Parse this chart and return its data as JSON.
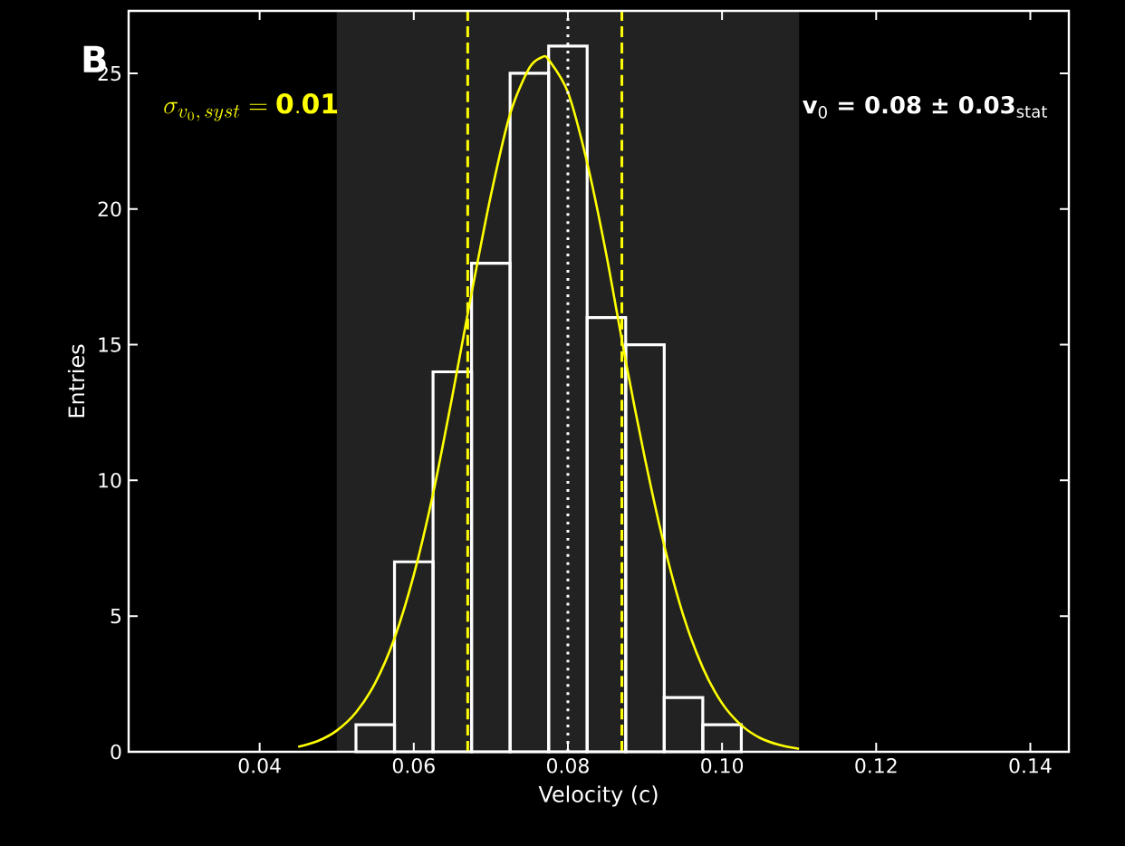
{
  "chart_data": {
    "type": "histogram",
    "xlabel": "Velocity (c)",
    "ylabel": "Entries",
    "bins": [
      0.0525,
      0.0575,
      0.0625,
      0.0675,
      0.0725,
      0.0775,
      0.0825,
      0.0875,
      0.0925,
      0.0975,
      0.1025
    ],
    "series": [
      {
        "color": "#ffffff",
        "values": [
          1,
          7,
          14,
          18,
          25,
          26,
          16,
          15,
          2,
          1
        ]
      },
      {
        "type": "line",
        "color": "#ffff00",
        "x": [
          0.045,
          0.0475,
          0.05,
          0.0525,
          0.055,
          0.0575,
          0.06,
          0.0625,
          0.065,
          0.0675,
          0.07,
          0.0725,
          0.075,
          0.0767,
          0.0775,
          0.08,
          0.0825,
          0.085,
          0.0875,
          0.09,
          0.0925,
          0.095,
          0.0975,
          0.1,
          0.1025,
          0.105,
          0.1075,
          0.11
        ],
        "values": [
          0.18,
          0.39,
          0.78,
          1.45,
          2.54,
          4.19,
          6.51,
          9.5,
          13.1,
          16.9,
          20.5,
          23.5,
          25.2,
          25.6,
          25.5,
          24.3,
          21.7,
          18.3,
          14.4,
          10.8,
          7.6,
          5.0,
          3.1,
          1.79,
          0.98,
          0.5,
          0.25,
          0.11
        ]
      }
    ],
    "annotations": [
      "B",
      "\\sigma_{v_0,\\,syst} = \\mathbf{0.01}",
      "**v**$_{0}$ **= 0.08 ± 0.03**$_{stat}$"
    ],
    "ref_lines": [
      {
        "axis": "x",
        "value": 0.067,
        "color": "#ffff00",
        "line_style": "dashed"
      },
      {
        "axis": "x",
        "value": 0.087,
        "color": "#ffff00",
        "line_style": "dashed"
      },
      {
        "axis": "x",
        "value": 0.08,
        "color": "#ffffff",
        "line_style": "dotted"
      }
    ],
    "bands": [
      {
        "axis": "x",
        "from": 0.05,
        "to": 0.11,
        "color": "#222222"
      }
    ],
    "xlim": [
      0.023,
      0.145
    ],
    "ylim": [
      0,
      27.3
    ],
    "xticks": [
      0.04,
      0.06,
      0.08,
      {
        "value": 0.1,
        "label": "0.10"
      },
      0.12,
      0.14
    ],
    "yticks": [
      0,
      5,
      10,
      15,
      20,
      25
    ],
    "grid": false
  }
}
